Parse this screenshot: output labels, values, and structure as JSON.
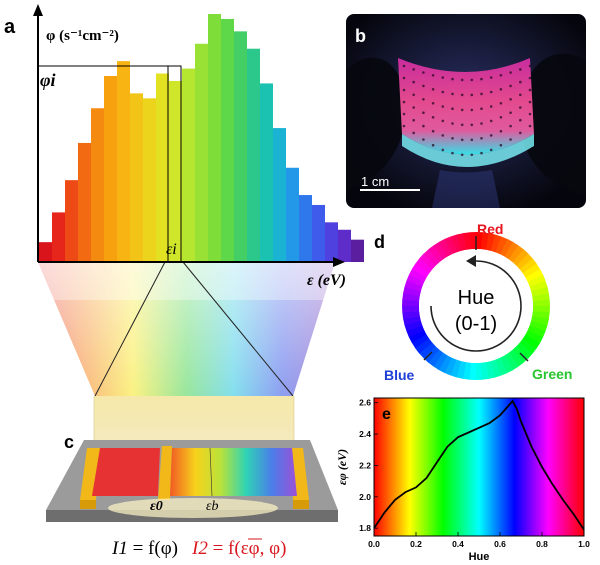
{
  "panels": {
    "a": {
      "label": "a",
      "y_axis_label": "φ (s⁻¹cm⁻²)",
      "phi_i_label": "φi",
      "eps_i_label": "εi",
      "x_axis_label": "ε (eV)",
      "bar_heights_relative": [
        0.08,
        0.2,
        0.33,
        0.48,
        0.62,
        0.75,
        0.81,
        0.68,
        0.66,
        0.76,
        0.73,
        0.78,
        0.88,
        1.0,
        0.98,
        0.93,
        0.86,
        0.72,
        0.54,
        0.38,
        0.27,
        0.23,
        0.16,
        0.13,
        0.09
      ],
      "bar_colors": [
        "#d9151b",
        "#e6261a",
        "#ee4a15",
        "#f26a12",
        "#f58a10",
        "#f7a10f",
        "#f7b412",
        "#f2c418",
        "#ecd41d",
        "#e2e122",
        "#cfe62b",
        "#b5e730",
        "#99e235",
        "#7fdd3a",
        "#5ed748",
        "#43cf66",
        "#2bc78b",
        "#1bc1b1",
        "#1ab3d3",
        "#2398e8",
        "#2f78ec",
        "#3f5beb",
        "#4f41df",
        "#5e2cc8",
        "#5a1e9e"
      ]
    },
    "b": {
      "label": "b",
      "scale_bar_label": "1 cm"
    },
    "c": {
      "label": "c",
      "eps0_label": "ε0",
      "epsb_label": "εb",
      "eq1_lhs": "I1",
      "eq1_rhs": " = f(φ)",
      "eq2_lhs": "I2",
      "eq2_rhs": " = f(εφ, φ)"
    },
    "d": {
      "label": "d",
      "center_line1": "Hue",
      "center_line2": "(0-1)",
      "red_label": "Red",
      "blue_label": "Blue",
      "green_label": "Green",
      "colors": {
        "red": "#e8141e",
        "blue": "#1f3fd6",
        "green": "#27c52e"
      }
    }
  },
  "chart_data": {
    "type": "line",
    "panel_label": "e",
    "title": "",
    "xlabel": "Hue",
    "ylabel": "εφ (eV)",
    "xlim": [
      0.0,
      1.0
    ],
    "ylim": [
      1.75,
      2.63
    ],
    "xticks": [
      "0.0",
      "0.2",
      "0.4",
      "0.6",
      "0.8",
      "1.0"
    ],
    "yticks": [
      "1.8",
      "2.0",
      "2.2",
      "2.4",
      "2.6"
    ],
    "x": [
      0.0,
      0.05,
      0.1,
      0.15,
      0.2,
      0.25,
      0.3,
      0.35,
      0.4,
      0.45,
      0.5,
      0.55,
      0.6,
      0.64,
      0.66,
      0.68,
      0.7,
      0.75,
      0.8,
      0.85,
      0.9,
      0.95,
      1.0
    ],
    "y": [
      1.8,
      1.9,
      1.98,
      2.03,
      2.06,
      2.12,
      2.22,
      2.32,
      2.38,
      2.41,
      2.44,
      2.47,
      2.52,
      2.58,
      2.61,
      2.56,
      2.48,
      2.32,
      2.19,
      2.08,
      1.98,
      1.89,
      1.79
    ]
  }
}
